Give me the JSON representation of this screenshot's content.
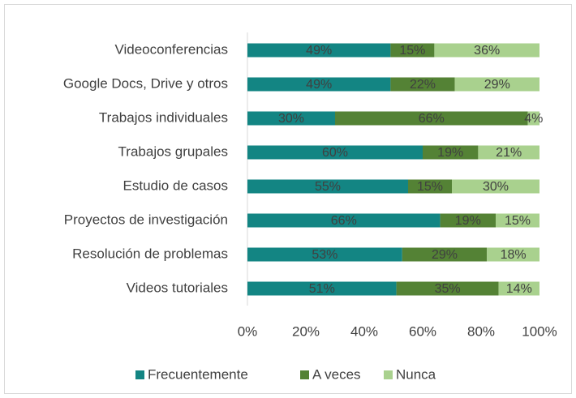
{
  "chart_data": {
    "type": "stacked_bar_horizontal",
    "categories": [
      "Videoconferencias",
      "Google Docs, Drive y otros",
      "Trabajos individuales",
      "Trabajos grupales",
      "Estudio de casos",
      "Proyectos de investigación",
      "Resolución de problemas",
      "Videos tutoriales"
    ],
    "series": [
      {
        "name": "Frecuentemente",
        "color": "#138583",
        "values": [
          49,
          49,
          30,
          60,
          55,
          66,
          53,
          51
        ],
        "value_labels": [
          "49%",
          "49%",
          "30%",
          "60%",
          "55%",
          "66%",
          "53%",
          "51%"
        ]
      },
      {
        "name": "A veces",
        "color": "#548235",
        "values": [
          15,
          22,
          66,
          19,
          15,
          19,
          29,
          35
        ],
        "value_labels": [
          "15%",
          "22%",
          "66%",
          "19%",
          "15%",
          "19%",
          "29%",
          "35%"
        ]
      },
      {
        "name": "Nunca",
        "color": "#a9d18e",
        "values": [
          36,
          29,
          4,
          21,
          30,
          15,
          18,
          14
        ],
        "value_labels": [
          "36%",
          "29%",
          "4%",
          "21%",
          "30%",
          "15%",
          "18%",
          "14%"
        ]
      }
    ],
    "xlim": [
      0,
      100
    ],
    "xticks": [
      {
        "value": 0,
        "label": "0%"
      },
      {
        "value": 20,
        "label": "20%"
      },
      {
        "value": 40,
        "label": "40%"
      },
      {
        "value": 60,
        "label": "60%"
      },
      {
        "value": 80,
        "label": "80%"
      },
      {
        "value": 100,
        "label": "100%"
      }
    ],
    "legend": "bottom"
  }
}
